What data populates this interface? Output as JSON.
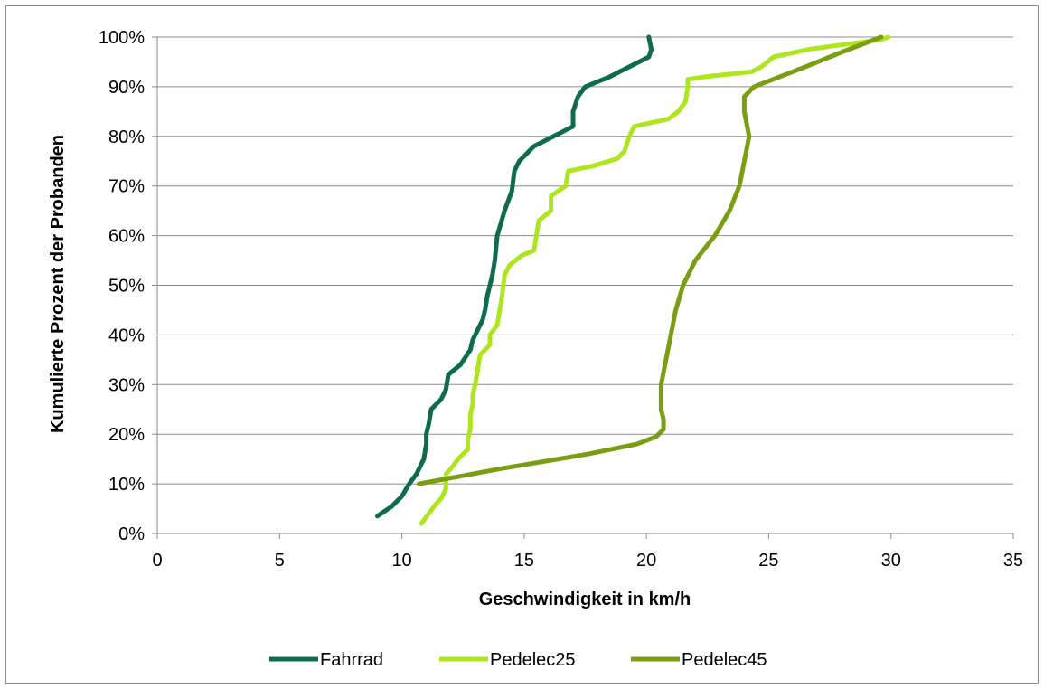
{
  "chart_data": {
    "type": "line",
    "title": "",
    "xlabel": "Geschwindigkeit in km/h",
    "ylabel": "Kumulierte Prozent der Probanden",
    "xlim": [
      0,
      35
    ],
    "ylim": [
      0,
      100
    ],
    "x_ticks": [
      "0",
      "5",
      "10",
      "15",
      "20",
      "25",
      "30",
      "35"
    ],
    "y_ticks": [
      "0%",
      "10%",
      "20%",
      "30%",
      "40%",
      "50%",
      "60%",
      "70%",
      "80%",
      "90%",
      "100%"
    ],
    "grid": "horizontal",
    "legend_position": "bottom",
    "series": [
      {
        "name": "Fahrrad",
        "color": "#0f6b4f",
        "points": [
          [
            9.0,
            3.5
          ],
          [
            9.6,
            5.5
          ],
          [
            10.0,
            7.5
          ],
          [
            10.3,
            10
          ],
          [
            10.6,
            12
          ],
          [
            10.9,
            15
          ],
          [
            11.0,
            18
          ],
          [
            11.0,
            20
          ],
          [
            11.1,
            22
          ],
          [
            11.2,
            25
          ],
          [
            11.6,
            27
          ],
          [
            11.8,
            29
          ],
          [
            11.9,
            32
          ],
          [
            12.4,
            34
          ],
          [
            12.8,
            37
          ],
          [
            12.9,
            39
          ],
          [
            13.0,
            40
          ],
          [
            13.3,
            43
          ],
          [
            13.4,
            45
          ],
          [
            13.5,
            48
          ],
          [
            13.7,
            52
          ],
          [
            13.8,
            55
          ],
          [
            13.9,
            60
          ],
          [
            14.2,
            65
          ],
          [
            14.5,
            69
          ],
          [
            14.6,
            73
          ],
          [
            14.8,
            75
          ],
          [
            15.4,
            78
          ],
          [
            16.2,
            80
          ],
          [
            17.0,
            82
          ],
          [
            17.0,
            85
          ],
          [
            17.2,
            88
          ],
          [
            17.5,
            90
          ],
          [
            18.5,
            92
          ],
          [
            19.3,
            94
          ],
          [
            20.1,
            96
          ],
          [
            20.2,
            97.5
          ],
          [
            20.1,
            100
          ]
        ]
      },
      {
        "name": "Pedelec25",
        "color": "#aee61e",
        "points": [
          [
            10.8,
            2
          ],
          [
            11.1,
            4
          ],
          [
            11.4,
            6
          ],
          [
            11.6,
            7
          ],
          [
            11.7,
            8
          ],
          [
            11.8,
            9
          ],
          [
            11.8,
            10.5
          ],
          [
            11.8,
            12
          ],
          [
            12.0,
            13
          ],
          [
            12.3,
            15
          ],
          [
            12.7,
            17
          ],
          [
            12.7,
            19
          ],
          [
            12.8,
            21
          ],
          [
            12.8,
            24
          ],
          [
            12.9,
            26
          ],
          [
            12.9,
            28
          ],
          [
            13.0,
            30
          ],
          [
            13.1,
            33
          ],
          [
            13.2,
            36
          ],
          [
            13.6,
            38
          ],
          [
            13.6,
            40
          ],
          [
            13.9,
            42
          ],
          [
            14.0,
            45
          ],
          [
            14.1,
            48
          ],
          [
            14.2,
            52
          ],
          [
            14.4,
            54
          ],
          [
            14.9,
            56
          ],
          [
            15.4,
            57
          ],
          [
            15.5,
            60
          ],
          [
            15.6,
            63
          ],
          [
            16.1,
            65
          ],
          [
            16.1,
            68
          ],
          [
            16.7,
            70
          ],
          [
            16.8,
            73
          ],
          [
            17.8,
            74
          ],
          [
            18.8,
            75.5
          ],
          [
            19.1,
            77
          ],
          [
            19.3,
            80
          ],
          [
            19.5,
            82
          ],
          [
            20.9,
            83.5
          ],
          [
            21.3,
            85
          ],
          [
            21.6,
            87
          ],
          [
            21.7,
            90
          ],
          [
            21.7,
            91.5
          ],
          [
            22.4,
            92
          ],
          [
            24.3,
            93
          ],
          [
            24.7,
            94
          ],
          [
            25.2,
            96
          ],
          [
            26.6,
            97.5
          ],
          [
            29.6,
            99.5
          ],
          [
            29.9,
            100
          ]
        ]
      },
      {
        "name": "Pedelec45",
        "color": "#7a9e12",
        "points": [
          [
            10.7,
            10
          ],
          [
            14.0,
            13
          ],
          [
            17.6,
            16
          ],
          [
            19.6,
            18
          ],
          [
            20.4,
            19.5
          ],
          [
            20.7,
            21
          ],
          [
            20.7,
            23
          ],
          [
            20.6,
            25
          ],
          [
            20.6,
            30
          ],
          [
            20.8,
            35
          ],
          [
            21.0,
            40
          ],
          [
            21.2,
            45
          ],
          [
            21.5,
            50
          ],
          [
            22.0,
            55
          ],
          [
            22.8,
            60
          ],
          [
            23.4,
            65
          ],
          [
            23.8,
            70
          ],
          [
            24.0,
            75
          ],
          [
            24.2,
            80
          ],
          [
            24.0,
            85
          ],
          [
            24.0,
            88
          ],
          [
            24.4,
            90
          ],
          [
            26.5,
            94
          ],
          [
            28.0,
            97
          ],
          [
            29.6,
            100
          ]
        ]
      }
    ]
  }
}
